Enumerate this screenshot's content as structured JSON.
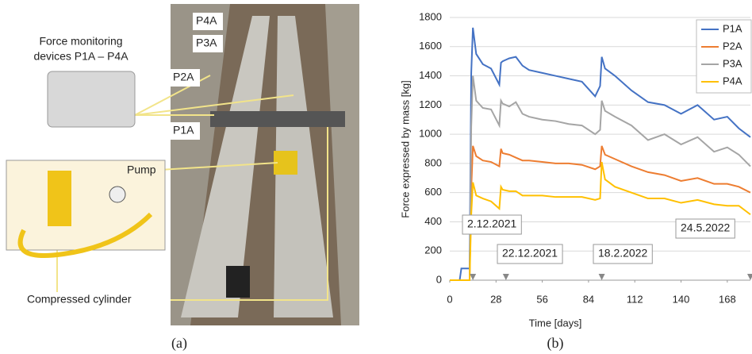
{
  "chart_data": {
    "type": "line",
    "x_label": "Time [days]",
    "y_label": "Force expressed by mass [kg]",
    "x": [
      0,
      6,
      7,
      12,
      13,
      14,
      16,
      20,
      25,
      30,
      31,
      32,
      36,
      40,
      44,
      48,
      56,
      64,
      72,
      80,
      88,
      91,
      92,
      94,
      100,
      110,
      120,
      130,
      140,
      150,
      160,
      168,
      175,
      182
    ],
    "series": [
      {
        "name": "P1A",
        "color": "#4472c4",
        "values": [
          0,
          0,
          80,
          80,
          1420,
          1730,
          1550,
          1480,
          1450,
          1340,
          1490,
          1500,
          1520,
          1530,
          1470,
          1440,
          1420,
          1400,
          1380,
          1360,
          1260,
          1330,
          1530,
          1450,
          1400,
          1300,
          1220,
          1200,
          1140,
          1200,
          1100,
          1120,
          1040,
          980
        ]
      },
      {
        "name": "P2A",
        "color": "#ed7d31",
        "values": [
          0,
          0,
          0,
          0,
          620,
          920,
          850,
          820,
          810,
          780,
          900,
          870,
          860,
          840,
          820,
          820,
          810,
          800,
          800,
          790,
          760,
          780,
          920,
          860,
          830,
          780,
          740,
          720,
          680,
          700,
          660,
          660,
          640,
          600
        ]
      },
      {
        "name": "P3A",
        "color": "#a5a5a5",
        "values": [
          0,
          0,
          0,
          0,
          1050,
          1400,
          1230,
          1180,
          1170,
          1060,
          1230,
          1210,
          1190,
          1220,
          1140,
          1120,
          1100,
          1090,
          1070,
          1060,
          1000,
          1030,
          1230,
          1160,
          1120,
          1060,
          960,
          1000,
          930,
          980,
          880,
          910,
          860,
          780
        ]
      },
      {
        "name": "P4A",
        "color": "#ffc000",
        "values": [
          0,
          0,
          0,
          0,
          450,
          670,
          580,
          560,
          540,
          490,
          640,
          620,
          610,
          610,
          580,
          580,
          580,
          570,
          570,
          570,
          550,
          560,
          810,
          690,
          640,
          600,
          560,
          560,
          530,
          550,
          520,
          510,
          510,
          450
        ]
      }
    ],
    "xlim": [
      0,
      182
    ],
    "xticks": [
      0,
      28,
      56,
      84,
      112,
      140,
      168
    ],
    "ylim": [
      0,
      1800
    ],
    "yticks": [
      0,
      200,
      400,
      600,
      800,
      1000,
      1200,
      1400,
      1600,
      1800
    ],
    "grid": true,
    "legend": "top-right",
    "annotations": [
      {
        "x": 14,
        "label": "2.12.2021"
      },
      {
        "x": 34,
        "label": "22.12.2021"
      },
      {
        "x": 92,
        "label": "18.2.2022"
      },
      {
        "x": 182,
        "label": "24.5.2022"
      }
    ]
  },
  "photo": {
    "labels": [
      "P4A",
      "P3A",
      "P2A",
      "P1A"
    ],
    "device_caption": [
      "Force monitoring",
      "devices P1A – P4A"
    ],
    "pump": "Pump",
    "cylinder": "Compressed cylinder"
  },
  "captions": [
    "(a)",
    "(b)"
  ]
}
